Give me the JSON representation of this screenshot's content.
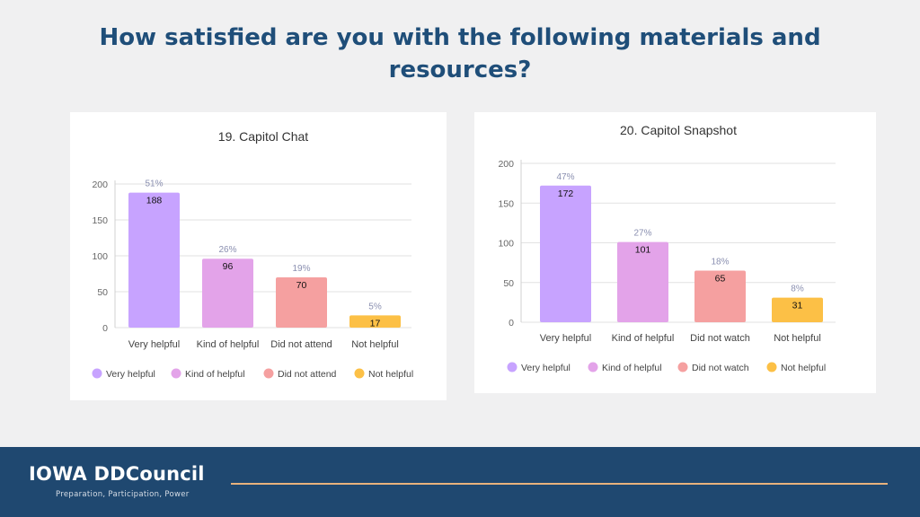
{
  "slide": {
    "title": "How satisfied are you with the following materials and resources?"
  },
  "footer": {
    "logo": "IOWA DDCouncil",
    "tagline": "Preparation, Participation, Power"
  },
  "colors": {
    "Very helpful": "#c7a3ff",
    "Kind of helpful": "#e3a3e9",
    "Did not attend": "#f5a0a0",
    "Did not watch": "#f5a0a0",
    "Not helpful": "#fcc046",
    "title": "#1f4e79",
    "footer": "#1f4870",
    "accent": "#e8b27c"
  },
  "chart_data": [
    {
      "type": "bar",
      "title": "19. Capitol Chat",
      "categories": [
        "Very helpful",
        "Kind of helpful",
        "Did not attend",
        "Not helpful"
      ],
      "values": [
        188,
        96,
        70,
        17
      ],
      "percent_labels": [
        "51%",
        "26%",
        "19%",
        "5%"
      ],
      "yticks": [
        0,
        50,
        100,
        150,
        200
      ],
      "ylim": [
        0,
        200
      ],
      "grid": true,
      "legend": "bottom",
      "legend_entries": [
        "Very helpful",
        "Kind of helpful",
        "Did not attend",
        "Not helpful"
      ]
    },
    {
      "type": "bar",
      "title": "20. Capitol Snapshot",
      "categories": [
        "Very helpful",
        "Kind of helpful",
        "Did not watch",
        "Not helpful"
      ],
      "values": [
        172,
        101,
        65,
        31
      ],
      "percent_labels": [
        "47%",
        "27%",
        "18%",
        "8%"
      ],
      "yticks": [
        0,
        50,
        100,
        150,
        200
      ],
      "ylim": [
        0,
        200
      ],
      "grid": true,
      "legend": "bottom",
      "legend_entries": [
        "Very helpful",
        "Kind of helpful",
        "Did not watch",
        "Not helpful"
      ]
    }
  ]
}
